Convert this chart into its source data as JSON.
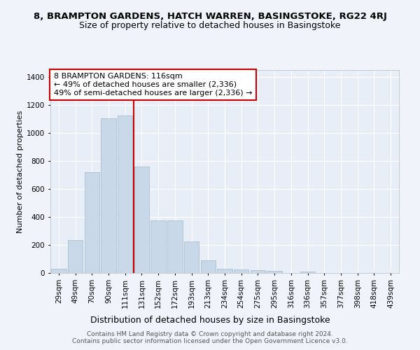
{
  "title_line1": "8, BRAMPTON GARDENS, HATCH WARREN, BASINGSTOKE, RG22 4RJ",
  "title_line2": "Size of property relative to detached houses in Basingstoke",
  "xlabel": "Distribution of detached houses by size in Basingstoke",
  "ylabel": "Number of detached properties",
  "bar_color": "#c8d8e8",
  "bar_edge_color": "#a0b8cc",
  "background_color": "#e8eef8",
  "grid_color": "#ffffff",
  "fig_background": "#f0f4fa",
  "categories": [
    "29sqm",
    "49sqm",
    "70sqm",
    "90sqm",
    "111sqm",
    "131sqm",
    "152sqm",
    "172sqm",
    "193sqm",
    "213sqm",
    "234sqm",
    "254sqm",
    "275sqm",
    "295sqm",
    "316sqm",
    "336sqm",
    "357sqm",
    "377sqm",
    "398sqm",
    "418sqm",
    "439sqm"
  ],
  "values": [
    30,
    235,
    720,
    1105,
    1125,
    760,
    375,
    375,
    225,
    90,
    30,
    25,
    20,
    15,
    0,
    10,
    0,
    0,
    0,
    0,
    0
  ],
  "ylim": [
    0,
    1450
  ],
  "yticks": [
    0,
    200,
    400,
    600,
    800,
    1000,
    1200,
    1400
  ],
  "vline_x": 4.5,
  "vline_color": "#cc0000",
  "annotation_text": "8 BRAMPTON GARDENS: 116sqm\n← 49% of detached houses are smaller (2,336)\n49% of semi-detached houses are larger (2,336) →",
  "annotation_box_color": "#ffffff",
  "annotation_box_edge": "#cc0000",
  "footer_text": "Contains HM Land Registry data © Crown copyright and database right 2024.\nContains public sector information licensed under the Open Government Licence v3.0.",
  "title_fontsize": 9.5,
  "subtitle_fontsize": 9,
  "xlabel_fontsize": 9,
  "ylabel_fontsize": 8,
  "tick_fontsize": 7.5,
  "annotation_fontsize": 8,
  "footer_fontsize": 6.5
}
